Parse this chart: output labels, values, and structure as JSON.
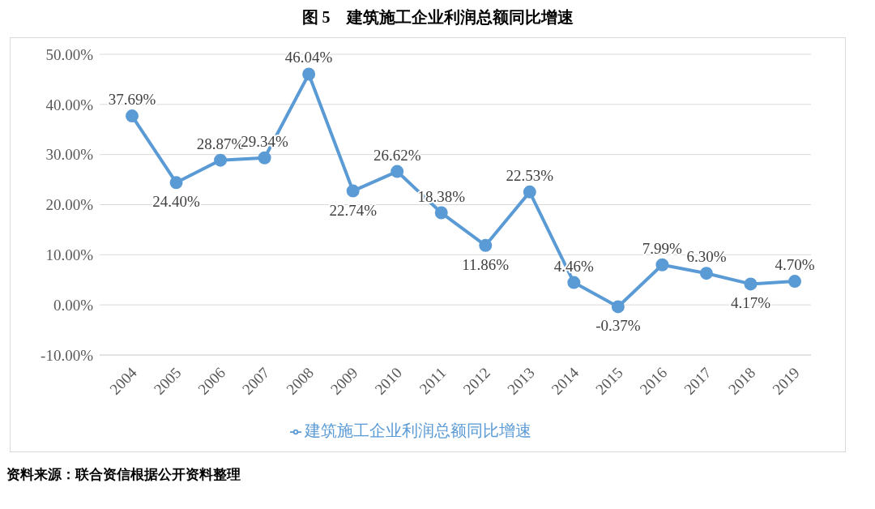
{
  "chart_data": {
    "type": "line",
    "title": "图 5　建筑施工企业利润总额同比增速",
    "categories": [
      "2004",
      "2005",
      "2006",
      "2007",
      "2008",
      "2009",
      "2010",
      "2011",
      "2012",
      "2013",
      "2014",
      "2015",
      "2016",
      "2017",
      "2018",
      "2019"
    ],
    "series": [
      {
        "name": "建筑施工企业利润总额同比增速",
        "color": "#5b9bd5",
        "values": [
          37.69,
          24.4,
          28.87,
          29.34,
          46.04,
          22.74,
          26.62,
          18.38,
          11.86,
          22.53,
          4.46,
          -0.37,
          7.99,
          6.3,
          4.17,
          4.7
        ],
        "value_labels": [
          "37.69%",
          "24.40%",
          "28.87%",
          "29.34%",
          "46.04%",
          "22.74%",
          "26.62%",
          "18.38%",
          "11.86%",
          "22.53%",
          "4.46%",
          "-0.37%",
          "7.99%",
          "6.30%",
          "4.17%",
          "4.70%"
        ]
      }
    ],
    "ylim": [
      -10,
      50
    ],
    "yticks": [
      {
        "value": -10,
        "label": "-10.00%"
      },
      {
        "value": 0,
        "label": "0.00%"
      },
      {
        "value": 10,
        "label": "10.00%"
      },
      {
        "value": 20,
        "label": "20.00%"
      },
      {
        "value": 30,
        "label": "30.00%"
      },
      {
        "value": 40,
        "label": "40.00%"
      },
      {
        "value": 50,
        "label": "50.00%"
      }
    ],
    "grid": "y",
    "legend": "bottom",
    "marker": "circle",
    "line_style": "solid",
    "annotations": [
      "资料来源：联合资信根据公开资料整理"
    ]
  }
}
